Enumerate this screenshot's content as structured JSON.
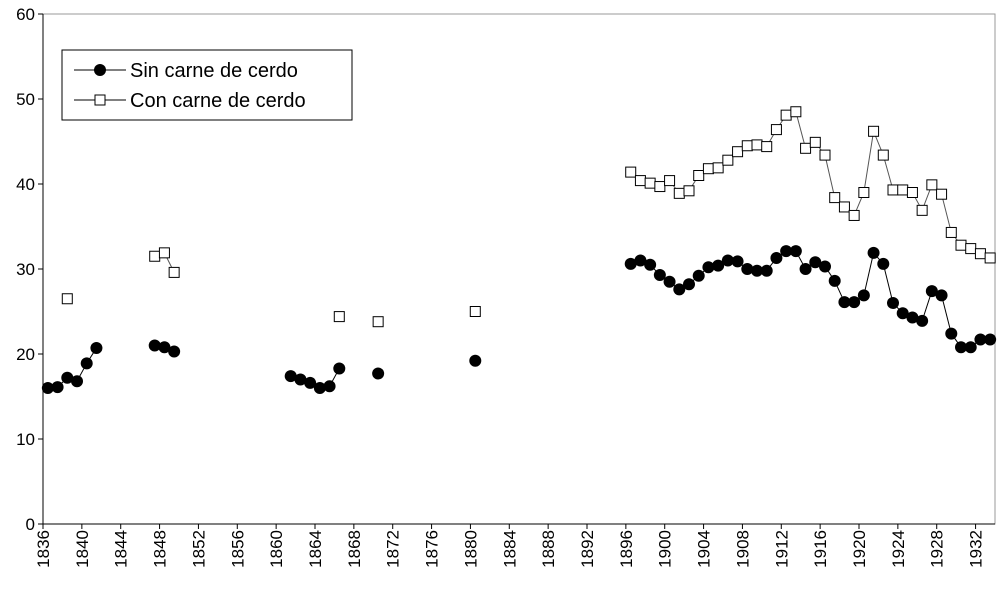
{
  "chart_data": {
    "type": "line",
    "categories": [
      "1836",
      null,
      null,
      null,
      "1840",
      null,
      null,
      null,
      "1844",
      null,
      null,
      null,
      "1848",
      null,
      null,
      null,
      "1852",
      null,
      null,
      null,
      "1856",
      null,
      null,
      null,
      "1860",
      null,
      null,
      null,
      "1864",
      null,
      null,
      null,
      "1868",
      null,
      null,
      null,
      "1872",
      null,
      null,
      null,
      "1876",
      null,
      null,
      null,
      "1880",
      null,
      null,
      null,
      "1884",
      null,
      null,
      null,
      "1888",
      null,
      null,
      null,
      "1892",
      null,
      null,
      null,
      "1896",
      null,
      null,
      null,
      "1900",
      null,
      null,
      null,
      "1904",
      null,
      null,
      null,
      "1908",
      null,
      null,
      null,
      "1912",
      null,
      null,
      null,
      "1916",
      null,
      null,
      null,
      "1920",
      null,
      null,
      null,
      "1924",
      null,
      null,
      null,
      "1928",
      null,
      null,
      null,
      "1932",
      null
    ],
    "series": [
      {
        "name": "Sin carne de cerdo",
        "color": "#000000",
        "marker": "circle",
        "values": [
          16.0,
          16.1,
          17.2,
          16.8,
          18.9,
          20.7,
          null,
          null,
          null,
          null,
          null,
          21.0,
          20.8,
          20.3,
          null,
          null,
          null,
          null,
          null,
          null,
          null,
          null,
          null,
          null,
          null,
          17.4,
          17.0,
          16.6,
          16.0,
          16.2,
          18.3,
          null,
          null,
          null,
          17.7,
          null,
          null,
          null,
          null,
          null,
          null,
          null,
          null,
          null,
          19.2,
          null,
          null,
          null,
          null,
          null,
          null,
          null,
          null,
          null,
          null,
          null,
          null,
          null,
          null,
          null,
          30.6,
          31.0,
          30.5,
          29.3,
          28.5,
          27.6,
          28.2,
          29.2,
          30.2,
          30.4,
          31.0,
          30.9,
          30.0,
          29.8,
          29.8,
          31.3,
          32.1,
          32.1,
          30.0,
          30.8,
          30.3,
          28.6,
          26.1,
          26.1,
          26.9,
          31.9,
          30.6,
          26.0,
          24.8,
          24.3,
          23.9,
          27.4,
          26.9,
          22.4,
          20.8,
          20.8,
          21.7,
          21.7
        ]
      },
      {
        "name": "Con carne de cerdo",
        "color": "#000000",
        "marker": "square",
        "values": [
          null,
          null,
          26.5,
          null,
          null,
          null,
          null,
          null,
          null,
          null,
          null,
          31.5,
          31.9,
          29.6,
          null,
          null,
          null,
          null,
          null,
          null,
          null,
          null,
          null,
          null,
          null,
          null,
          null,
          null,
          null,
          null,
          24.4,
          null,
          null,
          null,
          23.8,
          null,
          null,
          null,
          null,
          null,
          null,
          null,
          null,
          null,
          25.0,
          null,
          null,
          null,
          null,
          null,
          null,
          null,
          null,
          null,
          null,
          null,
          null,
          null,
          null,
          null,
          41.4,
          40.4,
          40.1,
          39.7,
          40.4,
          38.9,
          39.2,
          41.0,
          41.8,
          41.9,
          42.8,
          43.8,
          44.5,
          44.6,
          44.4,
          46.4,
          48.1,
          48.5,
          44.2,
          44.9,
          43.4,
          38.4,
          37.3,
          36.3,
          39.0,
          46.2,
          43.4,
          39.3,
          39.3,
          39.0,
          36.9,
          39.9,
          38.8,
          34.3,
          32.8,
          32.4,
          31.8,
          31.3
        ]
      }
    ],
    "ylim": [
      0,
      60
    ],
    "yticks": [
      0,
      10,
      20,
      30,
      40,
      50,
      60
    ],
    "grid": false,
    "legend": "top-left"
  }
}
